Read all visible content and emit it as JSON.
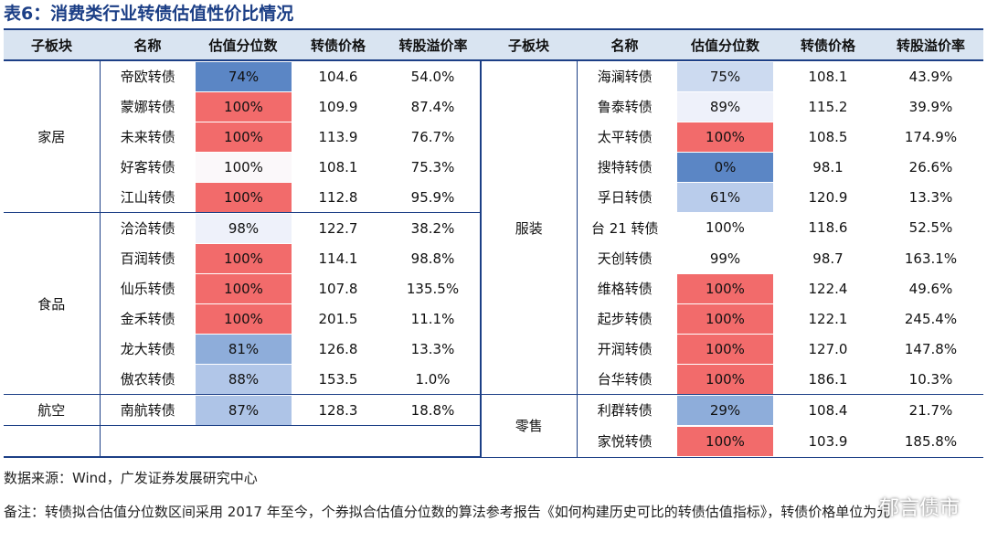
{
  "title": "表6：消费类行业转债估值性价比情况",
  "headers": [
    "子板块",
    "名称",
    "估值分位数",
    "转债价格",
    "转股溢价率"
  ],
  "left_groups": [
    {
      "sector": "家居",
      "rows": [
        {
          "name": "帝欧转债",
          "pct": "74%",
          "price": "104.6",
          "premium": "54.0%",
          "color": "#5b86c5"
        },
        {
          "name": "蒙娜转债",
          "pct": "100%",
          "price": "109.9",
          "premium": "87.4%",
          "color": "#f26b6b"
        },
        {
          "name": "未来转债",
          "pct": "100%",
          "price": "113.9",
          "premium": "76.7%",
          "color": "#f26b6b"
        },
        {
          "name": "好客转债",
          "pct": "100%",
          "price": "108.1",
          "premium": "75.3%",
          "color": "#fbf8fa"
        },
        {
          "name": "江山转债",
          "pct": "100%",
          "price": "112.8",
          "premium": "95.9%",
          "color": "#f26b6b"
        }
      ]
    },
    {
      "sector": "食品",
      "rows": [
        {
          "name": "洽洽转债",
          "pct": "98%",
          "price": "122.7",
          "premium": "38.2%",
          "color": "#eef1fa"
        },
        {
          "name": "百润转债",
          "pct": "100%",
          "price": "114.1",
          "premium": "98.8%",
          "color": "#f26b6b"
        },
        {
          "name": "仙乐转债",
          "pct": "100%",
          "price": "107.8",
          "premium": "135.5%",
          "color": "#f26b6b"
        },
        {
          "name": "金禾转债",
          "pct": "100%",
          "price": "201.5",
          "premium": "11.1%",
          "color": "#f26b6b"
        },
        {
          "name": "龙大转债",
          "pct": "81%",
          "price": "126.8",
          "premium": "13.3%",
          "color": "#8eadda"
        },
        {
          "name": "傲农转债",
          "pct": "88%",
          "price": "153.5",
          "premium": "1.0%",
          "color": "#b1c6e8"
        }
      ]
    },
    {
      "sector": "航空",
      "rows": [
        {
          "name": "南航转债",
          "pct": "87%",
          "price": "128.3",
          "premium": "18.8%",
          "color": "#aec4e7"
        }
      ]
    }
  ],
  "right_groups": [
    {
      "sector": "服装",
      "rows": [
        {
          "name": "海澜转债",
          "pct": "75%",
          "price": "108.1",
          "premium": "43.9%",
          "color": "#ccdaf0"
        },
        {
          "name": "鲁泰转债",
          "pct": "89%",
          "price": "115.2",
          "premium": "39.9%",
          "color": "#eef1fa"
        },
        {
          "name": "太平转债",
          "pct": "100%",
          "price": "108.5",
          "premium": "174.9%",
          "color": "#f26b6b"
        },
        {
          "name": "搜特转债",
          "pct": "0%",
          "price": "98.1",
          "premium": "26.6%",
          "color": "#5b86c5"
        },
        {
          "name": "孚日转债",
          "pct": "61%",
          "price": "120.9",
          "premium": "13.3%",
          "color": "#b9cceb"
        },
        {
          "name": "台 21 转债",
          "pct": "100%",
          "price": "118.6",
          "premium": "52.5%",
          "color": "#ffffff"
        },
        {
          "name": "天创转债",
          "pct": "99%",
          "price": "98.7",
          "premium": "163.1%",
          "color": "#ffffff"
        },
        {
          "name": "维格转债",
          "pct": "100%",
          "price": "122.4",
          "premium": "49.6%",
          "color": "#f26b6b"
        },
        {
          "name": "起步转债",
          "pct": "100%",
          "price": "122.1",
          "premium": "245.4%",
          "color": "#f26b6b"
        },
        {
          "name": "开润转债",
          "pct": "100%",
          "price": "127.0",
          "premium": "147.8%",
          "color": "#f26b6b"
        },
        {
          "name": "台华转债",
          "pct": "100%",
          "price": "186.1",
          "premium": "10.3%",
          "color": "#f26b6b"
        }
      ]
    },
    {
      "sector": "零售",
      "rows": [
        {
          "name": "利群转债",
          "pct": "29%",
          "price": "108.4",
          "premium": "21.7%",
          "color": "#8eadda"
        },
        {
          "name": "家悦转债",
          "pct": "100%",
          "price": "103.9",
          "premium": "185.8%",
          "color": "#f26b6b"
        }
      ]
    }
  ],
  "footer_source": "数据来源：Wind，广发证券发展研究中心",
  "footer_note": "备注：转债拟合估值分位数区间采用 2017 年至今，个券拟合估值分位数的算法参考报告《如何构建历史可比的转债估值指标》，转债价格单位为元",
  "watermark": "郁言债市"
}
